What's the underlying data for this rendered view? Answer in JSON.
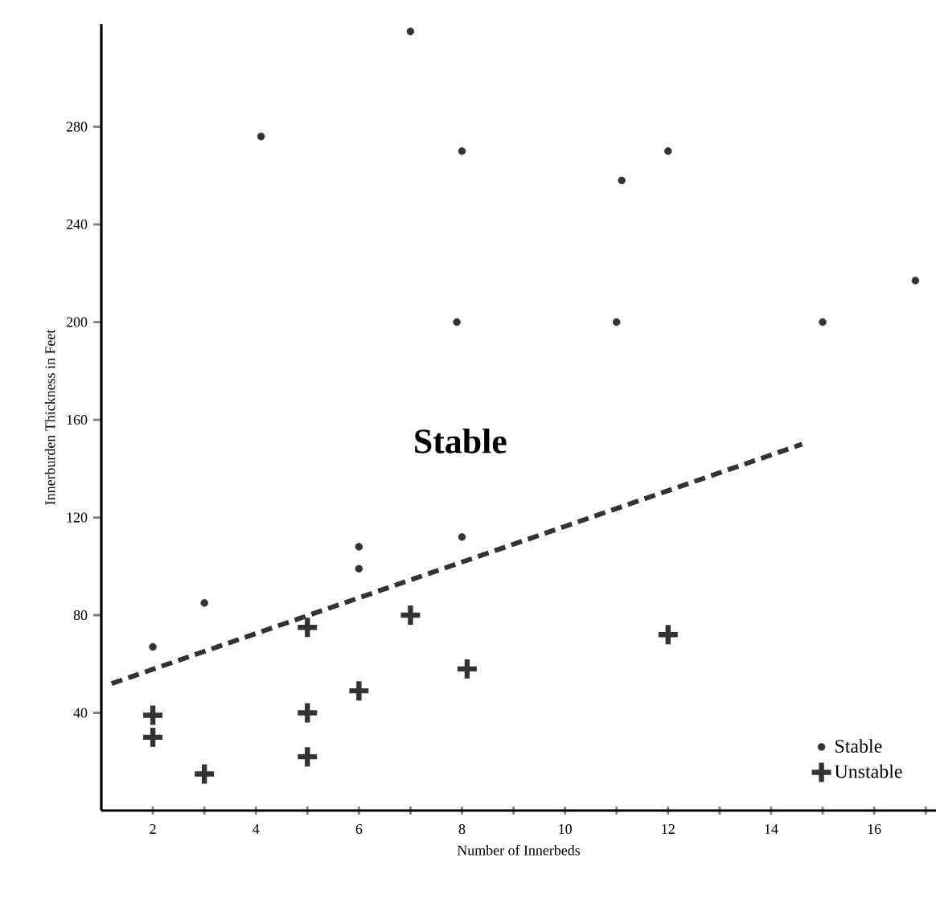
{
  "chart_data": {
    "type": "scatter",
    "xlabel": "Number of Innerbeds",
    "ylabel": "Innerburden Thickness in Feet",
    "xlim": [
      1,
      17.2
    ],
    "ylim": [
      0,
      322
    ],
    "xticks": [
      {
        "value": 2,
        "label": "2"
      },
      {
        "value": 3,
        "label": null
      },
      {
        "value": 4,
        "label": "4"
      },
      {
        "value": 5,
        "label": null
      },
      {
        "value": 6,
        "label": "6"
      },
      {
        "value": 7,
        "label": null
      },
      {
        "value": 8,
        "label": "8"
      },
      {
        "value": 9,
        "label": null
      },
      {
        "value": 10,
        "label": "10"
      },
      {
        "value": 11,
        "label": null
      },
      {
        "value": 12,
        "label": "12"
      },
      {
        "value": 13,
        "label": null
      },
      {
        "value": 14,
        "label": "14"
      },
      {
        "value": 15,
        "label": null
      },
      {
        "value": 16,
        "label": "16"
      },
      {
        "value": 17,
        "label": null
      }
    ],
    "yticks": [
      40,
      80,
      120,
      160,
      200,
      240,
      280
    ],
    "grid": false,
    "legend": "bottom right",
    "annotations": [
      "Stable"
    ],
    "series": [
      {
        "name": "Stable",
        "color": "#333333",
        "marker": "circle",
        "x": [
          7,
          4.1,
          8,
          7.9,
          11.1,
          12,
          11,
          15,
          16.8,
          8,
          6,
          6,
          3,
          2
        ],
        "values": [
          319,
          276,
          270,
          200,
          258,
          270,
          200,
          200,
          217,
          112,
          108,
          99,
          85,
          67
        ]
      },
      {
        "name": "Unstable",
        "color": "#333333",
        "marker": "cross",
        "x": [
          2,
          2,
          3,
          5,
          5,
          5,
          6,
          7,
          8.1,
          12
        ],
        "values": [
          39,
          30,
          15,
          75,
          40,
          22,
          49,
          80,
          58,
          72
        ]
      },
      {
        "type": "line",
        "color": "#333333",
        "marker": "none",
        "line_style": "dashed",
        "x": [
          1.2,
          14.6
        ],
        "values": [
          52,
          150
        ]
      }
    ]
  }
}
